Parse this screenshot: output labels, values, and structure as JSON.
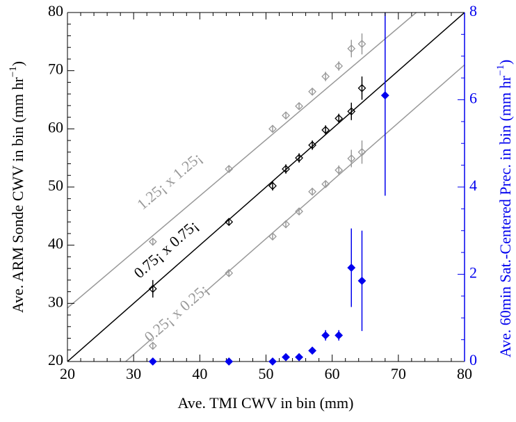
{
  "chart_data": {
    "type": "scatter",
    "xlabel": "Ave. TMI CWV in bin (mm)",
    "ylabel": {
      "text": "Ave. ARM Sonde CWV in bin (mm hr",
      "sup": "−1",
      "end": ")"
    },
    "y2label": {
      "text": "Ave. 60min Sat.-Centered Prec. in bin (mm hr",
      "sup": "−1",
      "end": ")"
    },
    "xlim": [
      20,
      80
    ],
    "xticks": [
      20,
      30,
      40,
      50,
      60,
      70,
      80
    ],
    "ylim": [
      20,
      80
    ],
    "yticks": [
      20,
      30,
      40,
      50,
      60,
      70,
      80
    ],
    "y2lim": [
      0,
      8
    ],
    "y2ticks": [
      0,
      2,
      4,
      6,
      8
    ],
    "y2color": "#0000ee",
    "series": [
      {
        "name": "1.25¡ x 1.25¡",
        "color": "#999999",
        "marker": "open",
        "x": [
          32.9,
          44.4,
          51,
          53,
          55,
          57,
          59,
          61,
          62.9,
          64.5
        ],
        "values": [
          40.6,
          53.1,
          60,
          62.3,
          63.9,
          66.4,
          69,
          70.8,
          73.8,
          74.6
        ],
        "errors": [
          0.6,
          0.6,
          0.6,
          0.6,
          0.6,
          0.6,
          0.8,
          0.8,
          1.5,
          1.8
        ],
        "line": {
          "x": [
            20,
            72.7
          ],
          "y": [
            29.2,
            80
          ]
        }
      },
      {
        "name": "0.75¡ x 0.75¡",
        "color": "#000000",
        "marker": "open",
        "x": [
          32.9,
          44.4,
          51,
          53,
          55,
          57,
          59,
          61,
          62.9,
          64.5
        ],
        "values": [
          32.5,
          44,
          50.2,
          53.1,
          55,
          57.2,
          59.8,
          61.8,
          63,
          67
        ],
        "errors": [
          1.5,
          0.6,
          0.8,
          0.8,
          0.8,
          0.8,
          0.8,
          0.8,
          1.5,
          2
        ],
        "line": {
          "x": [
            20,
            80
          ],
          "y": [
            20,
            80
          ]
        }
      },
      {
        "name": "0.25¡ x 0.25¡",
        "color": "#999999",
        "marker": "open",
        "x": [
          32.9,
          44.4,
          51,
          53,
          55,
          57,
          59,
          61,
          62.9,
          64.5
        ],
        "values": [
          22.7,
          35.2,
          41.5,
          43.6,
          45.8,
          49.2,
          50.5,
          52.9,
          54.9,
          56
        ],
        "errors": [
          0.6,
          0.6,
          0.6,
          0.6,
          0.6,
          0.6,
          0.6,
          0.8,
          1.5,
          2
        ],
        "line": {
          "x": [
            28.8,
            80
          ],
          "y": [
            20,
            71
          ]
        }
      },
      {
        "color": "#0000ee",
        "marker": "filled",
        "axis": "y2",
        "x": [
          32.9,
          44.4,
          51,
          53,
          55,
          57,
          59,
          61,
          62.9,
          64.5,
          68
        ],
        "values": [
          0,
          0,
          0,
          0.1,
          0.1,
          0.25,
          0.6,
          0.6,
          2.15,
          1.85,
          6.1
        ],
        "errors": [
          0,
          0,
          0,
          0,
          0,
          0,
          0.12,
          0.12,
          0.9,
          1.15,
          2.3
        ]
      }
    ]
  }
}
